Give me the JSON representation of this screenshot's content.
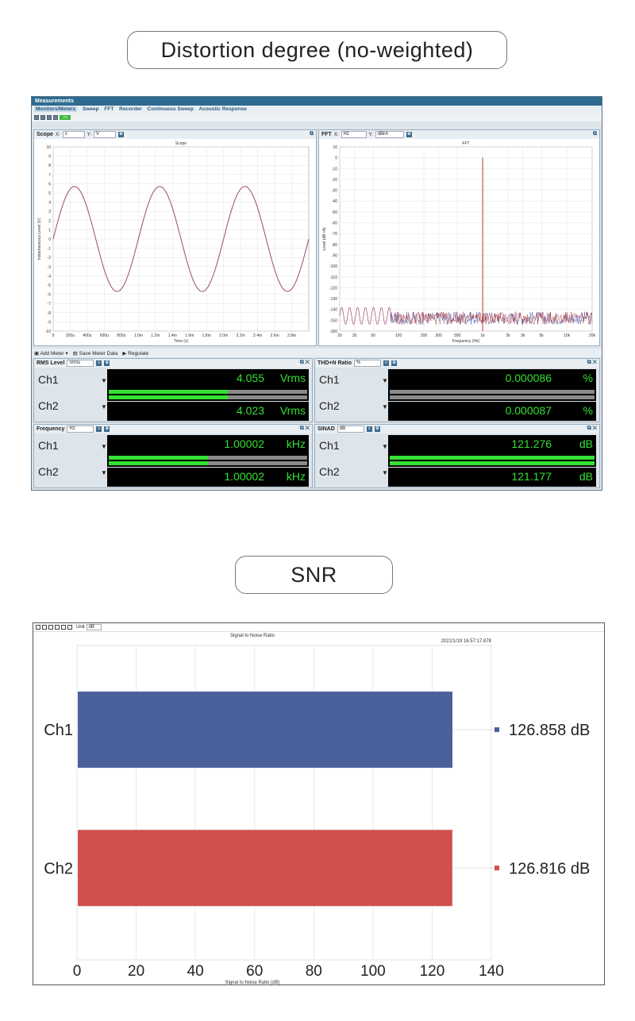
{
  "section1": {
    "title": "Distortion degree (no-weighted)"
  },
  "section2": {
    "title": "SNR"
  },
  "app": {
    "window_title": "Measurements",
    "menu": [
      "Monitors/Meters",
      "Sweep",
      "FFT",
      "Recorder",
      "Continuous Sweep",
      "Acoustic Response"
    ],
    "toolbar_on": "ON",
    "scope": {
      "title": "Scope",
      "x_label": "X:",
      "x_unit": "s",
      "y_label": "Y:",
      "y_unit": "V",
      "chart_title": "Scope",
      "xlabel": "Time (s)",
      "ylabel": "Instantaneous Level (V)"
    },
    "fft": {
      "title": "FFT",
      "x_label": "X:",
      "x_unit": "Hz",
      "y_label": "Y:",
      "y_unit": "dBrA",
      "chart_title": "FFT",
      "xlabel": "Frequency (Hz)",
      "ylabel": "Level (dB rA)"
    },
    "meter_toolbar": {
      "add": "Add Meter",
      "save": "Save Meter Data",
      "regulate": "Regulate"
    },
    "meters": [
      {
        "title": "RMS Level",
        "unit_select": "Vrms",
        "unit": "Vrms",
        "ch1": "4.055",
        "ch2": "4.023",
        "fill1": 0.6,
        "fill2": 0.6
      },
      {
        "title": "THD+N Ratio",
        "unit_select": "%",
        "unit": "%",
        "ch1": "0.000086",
        "ch2": "0.000087",
        "fill1": 0.0,
        "fill2": 0.0
      },
      {
        "title": "Frequency",
        "unit_select": "Hz",
        "unit": "kHz",
        "ch1": "1.00002",
        "ch2": "1.00002",
        "fill1": 0.5,
        "fill2": 0.5
      },
      {
        "title": "SINAD",
        "unit_select": "dB",
        "unit": "dB",
        "ch1": "121.276",
        "ch2": "121.177",
        "fill1": 1.0,
        "fill2": 1.0
      }
    ],
    "ch1_label": "Ch1",
    "ch2_label": "Ch2"
  },
  "snr_panel": {
    "unit_label": "Unit",
    "unit_value": "dB",
    "timestamp": "2022/1/19 16:57:17.878"
  },
  "chart_data": [
    {
      "type": "line",
      "title": "Scope",
      "xlabel": "Time (s)",
      "ylabel": "Instantaneous Level (V)",
      "x_tick_labels": [
        "0",
        "200u",
        "400u",
        "600u",
        "800u",
        "1.0m",
        "1.2m",
        "1.4m",
        "1.6m",
        "1.8m",
        "2.0m",
        "2.2m",
        "2.4m",
        "2.6m",
        "2.8m"
      ],
      "y_tick_labels": [
        "10",
        "9",
        "8",
        "7",
        "6",
        "5",
        "4",
        "3",
        "2",
        "1",
        "0",
        "-1",
        "-2",
        "-3",
        "-4",
        "-5",
        "-6",
        "-7",
        "-8",
        "-9",
        "-10"
      ],
      "xlim": [
        0,
        0.003
      ],
      "ylim": [
        -10,
        10
      ],
      "series": [
        {
          "amplitude_v": 5.7,
          "frequency_hz": 1000,
          "color": "#9b4a6a"
        }
      ]
    },
    {
      "type": "line",
      "title": "FFT",
      "xlabel": "Frequency (Hz)",
      "ylabel": "Level (dB rA)",
      "x_tick_labels": [
        "20",
        "30",
        "50",
        "100",
        "200",
        "300",
        "500",
        "1k",
        "2k",
        "3k",
        "5k",
        "10k",
        "20k"
      ],
      "y_tick_labels": [
        "10",
        "0",
        "-10",
        "-20",
        "-30",
        "-40",
        "-50",
        "-60",
        "-70",
        "-80",
        "-90",
        "-100",
        "-110",
        "-120",
        "-130",
        "-140",
        "-150",
        "-160"
      ],
      "xlim": [
        20,
        20000
      ],
      "ylim": [
        -160,
        10
      ],
      "x_scale": "log",
      "peak": {
        "x": 1000,
        "y": 0
      },
      "noise_floor_db": -150
    },
    {
      "type": "bar",
      "title": "Signal to Noise Ratio",
      "xlabel": "Signal to Noise Ratio (dB)",
      "orientation": "horizontal",
      "categories": [
        "Ch1",
        "Ch2"
      ],
      "values": [
        126.858,
        126.816
      ],
      "value_labels": [
        "126.858 dB",
        "126.816 dB"
      ],
      "x_tick_labels": [
        "0",
        "20",
        "40",
        "60",
        "80",
        "100",
        "120",
        "140"
      ],
      "xlim": [
        0,
        140
      ],
      "colors": [
        "#4a619b",
        "#d0504e"
      ]
    }
  ]
}
